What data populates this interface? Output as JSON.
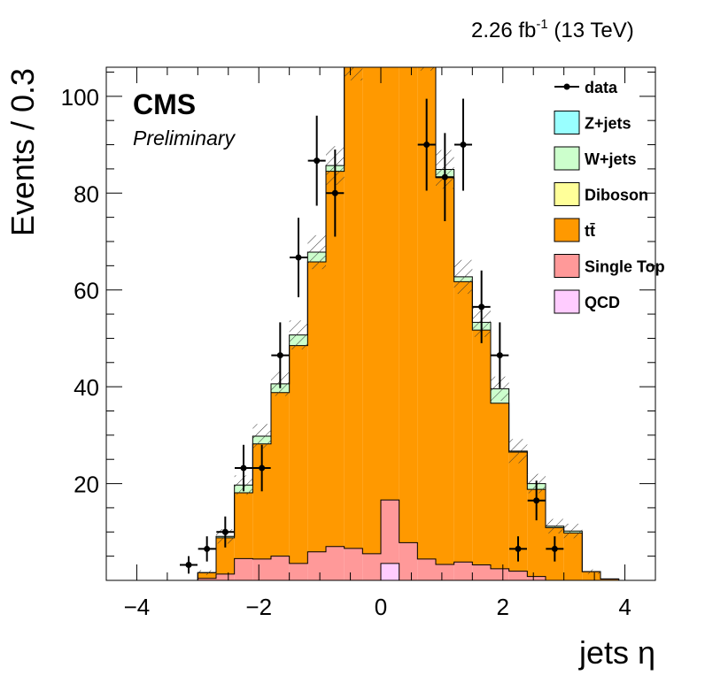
{
  "chart_data": {
    "type": "bar",
    "lumi_label": "2.26 fb",
    "lumi_superscript": "-1",
    "lumi_energy": " (13 TeV)",
    "cms_label": "CMS",
    "cms_sub": "Preliminary",
    "xlabel": "jets η",
    "ylabel": "Events / 0.3",
    "xlim": [
      -4.5,
      4.5
    ],
    "ylim": [
      0,
      106
    ],
    "x_ticks": [
      -4,
      -2,
      0,
      2,
      4
    ],
    "x_tick_labels": [
      "−4",
      "−2",
      "0",
      "2",
      "4"
    ],
    "y_ticks": [
      20,
      40,
      60,
      80,
      100
    ],
    "y_tick_labels": [
      "20",
      "40",
      "60",
      "80",
      "100"
    ],
    "bin_edges": [
      -4.2,
      -3.9,
      -3.6,
      -3.3,
      -3.0,
      -2.7,
      -2.4,
      -2.1,
      -1.8,
      -1.5,
      -1.2,
      -0.9,
      -0.6,
      -0.3,
      0.0,
      0.3,
      0.6,
      0.9,
      1.2,
      1.5,
      1.8,
      2.1,
      2.4,
      2.7,
      3.0,
      3.3,
      3.6,
      3.9,
      4.2
    ],
    "stack": [
      {
        "name": "QCD",
        "color": "#ffccff",
        "values": [
          0,
          0,
          0,
          0,
          0,
          0,
          0,
          0,
          0,
          0,
          0,
          0,
          0,
          0,
          3.5,
          0,
          0,
          0,
          0,
          0,
          0,
          0,
          0,
          0,
          0,
          0,
          0,
          0
        ]
      },
      {
        "name": "Single Top",
        "color": "#ff9999",
        "values": [
          0,
          0,
          0,
          0,
          0.4,
          1.3,
          4.5,
          4.4,
          5.0,
          3.5,
          5.9,
          7.0,
          6.6,
          5.5,
          13.1,
          7.8,
          4.4,
          3.3,
          3.8,
          3.2,
          2.4,
          1.9,
          0.8,
          0,
          0,
          0,
          0,
          0
        ]
      },
      {
        "name": "tt̄",
        "color": "#ff9900",
        "values": [
          0,
          0,
          0,
          0,
          1.2,
          7.5,
          13.6,
          23.8,
          33.8,
          45.0,
          59.9,
          77.5,
          100.0,
          109.0,
          96.0,
          109.0,
          104.0,
          79.9,
          57.9,
          48.5,
          34.2,
          24.6,
          18.0,
          10.9,
          9.8,
          1.8,
          0.3,
          0
        ]
      },
      {
        "name": "Diboson",
        "color": "#ffff99",
        "values": [
          0,
          0,
          0,
          0,
          0,
          0,
          0,
          0,
          0,
          0,
          0,
          0,
          0,
          0,
          0,
          0,
          0,
          0,
          0,
          0,
          0,
          0,
          0,
          0,
          0,
          0,
          0,
          0
        ]
      },
      {
        "name": "W+jets",
        "color": "#ccffcc",
        "values": [
          0,
          0,
          0,
          0,
          0,
          0.3,
          1.6,
          1.6,
          1.8,
          2.2,
          2.0,
          1.2,
          1.2,
          2.0,
          2.0,
          1.8,
          1.4,
          1.7,
          1.0,
          1.6,
          3.0,
          0.2,
          1.2,
          0.3,
          0.4,
          0,
          0,
          0
        ]
      },
      {
        "name": "Z+jets",
        "color": "#99ffff",
        "values": [
          0,
          0,
          0,
          0,
          0,
          0,
          0,
          0,
          0,
          0,
          0,
          0,
          0,
          0,
          0,
          0,
          0,
          0,
          0,
          0,
          0,
          0,
          0,
          0,
          0,
          0,
          0,
          0
        ]
      }
    ],
    "unc_band": [
      0,
      0,
      0,
      0,
      0.5,
      1.5,
      2,
      2.5,
      2.5,
      3,
      3.5,
      4,
      4.5,
      5,
      5,
      5,
      4.5,
      4,
      3.5,
      3,
      2.5,
      2.5,
      2,
      1.5,
      1.5,
      0.5,
      0,
      0
    ],
    "data": {
      "name": "data",
      "x": [
        -3.15,
        -2.85,
        -2.55,
        -2.25,
        -1.95,
        -1.65,
        -1.35,
        -1.05,
        -0.75,
        0.75,
        1.05,
        1.35,
        1.65,
        1.95,
        2.25,
        2.55,
        2.85
      ],
      "y": [
        3.2,
        6.5,
        10.0,
        23.2,
        23.2,
        46.5,
        66.7,
        86.7,
        80.0,
        90.0,
        83.3,
        90.0,
        56.5,
        46.5,
        6.5,
        16.5,
        6.5
      ],
      "err": [
        1.8,
        2.6,
        3.2,
        4.8,
        4.8,
        6.8,
        8.2,
        9.3,
        9.0,
        9.5,
        9.1,
        9.5,
        7.5,
        6.8,
        2.6,
        4.1,
        2.6
      ]
    },
    "legend": [
      {
        "label": "data",
        "marker": "point",
        "color": "#000000"
      },
      {
        "label": "Z+jets",
        "marker": "box",
        "color": "#99ffff"
      },
      {
        "label": "W+jets",
        "marker": "box",
        "color": "#ccffcc"
      },
      {
        "label": "Diboson",
        "marker": "box",
        "color": "#ffff99"
      },
      {
        "label": "tt̄",
        "marker": "box",
        "color": "#ff9900"
      },
      {
        "label": "Single Top",
        "marker": "box",
        "color": "#ff9999"
      },
      {
        "label": "QCD",
        "marker": "box",
        "color": "#ffccff"
      }
    ],
    "legend_position": "top-right",
    "grid": false
  }
}
